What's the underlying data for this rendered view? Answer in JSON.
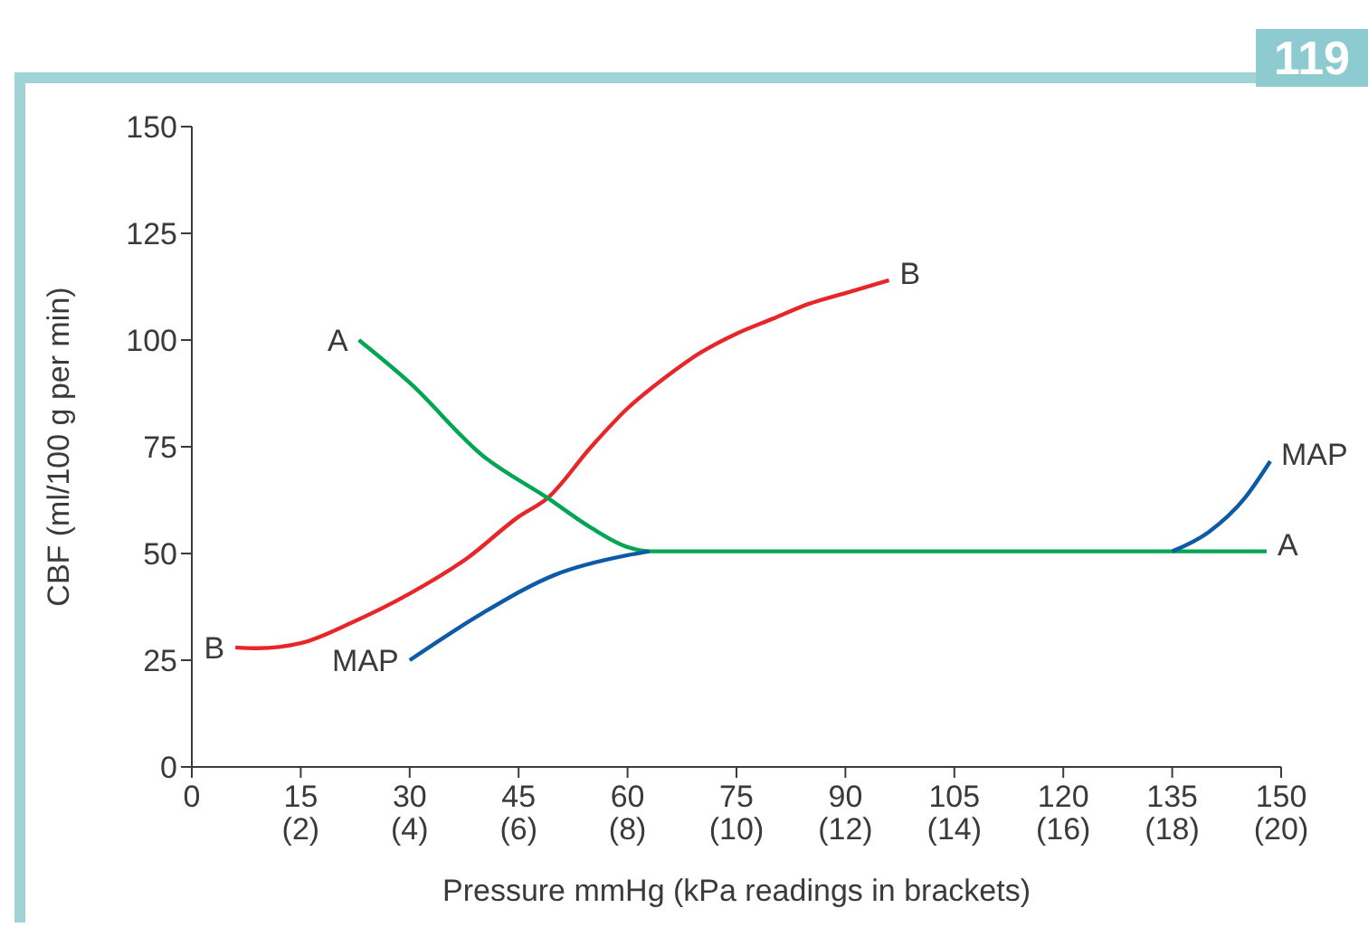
{
  "chart_data": {
    "type": "line",
    "xlabel": "Pressure mmHg (kPa readings in brackets)",
    "ylabel": "CBF (ml/100 g per min)",
    "annotations": [
      "119"
    ],
    "xlim": [
      0,
      150
    ],
    "ylim": [
      0,
      150
    ],
    "xticks": [
      0,
      15,
      30,
      45,
      60,
      75,
      90,
      105,
      120,
      135,
      150
    ],
    "x2lim": [
      0,
      20
    ],
    "x2ticks": [
      {
        "value": 2,
        "label": "(2)"
      },
      {
        "value": 4,
        "label": "(4)"
      },
      {
        "value": 6,
        "label": "(6)"
      },
      {
        "value": 8,
        "label": "(8)"
      },
      {
        "value": 10,
        "label": "(10)"
      },
      {
        "value": 12,
        "label": "(12)"
      },
      {
        "value": 14,
        "label": "(14)"
      },
      {
        "value": 16,
        "label": "(16)"
      },
      {
        "value": 18,
        "label": "(18)"
      },
      {
        "value": 20,
        "label": "(20)"
      }
    ],
    "yticks": [
      0,
      25,
      50,
      75,
      100,
      125,
      150
    ],
    "grid": false,
    "legend": false,
    "marker": "none",
    "line_style": "solid",
    "series": [
      {
        "name": "B",
        "color": "#e8262a",
        "x": [
          6,
          9,
          15,
          22,
          30,
          38,
          45,
          49,
          55,
          60,
          65,
          70,
          75,
          80,
          85,
          90,
          96
        ],
        "values": [
          28,
          27.8,
          29,
          33.8,
          40.6,
          49,
          58.6,
          63,
          75,
          84,
          91,
          97,
          101.5,
          105,
          108.5,
          111,
          114
        ]
      },
      {
        "name": "A",
        "color": "#00a651",
        "x": [
          23,
          30,
          40,
          49,
          55,
          60,
          63,
          148
        ],
        "values": [
          100,
          90,
          73,
          63,
          56,
          51.5,
          50.5,
          50.5
        ]
      },
      {
        "name": "MAP",
        "color": "#0d5ba6",
        "x": [
          30,
          40,
          50,
          60,
          63,
          100,
          135,
          140,
          145,
          148.5
        ],
        "values": [
          25,
          36,
          45,
          49.6,
          50.5,
          null,
          50.5,
          55,
          63,
          71.6
        ]
      }
    ]
  }
}
